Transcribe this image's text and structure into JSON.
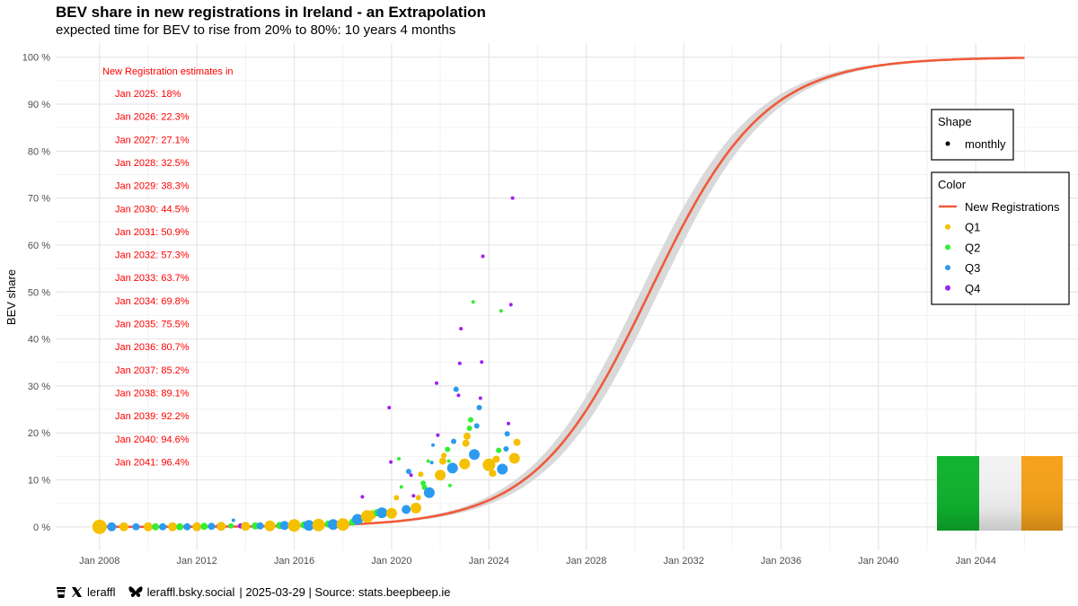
{
  "title": "BEV share in new registrations in Ireland - an Extrapolation",
  "subtitle": "expected time for BEV to rise from 20% to 80%: 10 years 4 months",
  "chart_data": {
    "type": "line+scatter",
    "ylabel": "BEV share",
    "xlabel": "",
    "xlim": [
      2006.2,
      2048.2
    ],
    "ylim": [
      -5,
      103
    ],
    "x_ticks": [
      {
        "value": 2008,
        "label": "Jan 2008"
      },
      {
        "value": 2012,
        "label": "Jan 2012"
      },
      {
        "value": 2016,
        "label": "Jan 2016"
      },
      {
        "value": 2020,
        "label": "Jan 2020"
      },
      {
        "value": 2024,
        "label": "Jan 2024"
      },
      {
        "value": 2028,
        "label": "Jan 2028"
      },
      {
        "value": 2032,
        "label": "Jan 2032"
      },
      {
        "value": 2036,
        "label": "Jan 2036"
      },
      {
        "value": 2040,
        "label": "Jan 2040"
      },
      {
        "value": 2044,
        "label": "Jan 2044"
      }
    ],
    "y_ticks": [
      {
        "value": 0,
        "label": "0 %"
      },
      {
        "value": 10,
        "label": "10 %"
      },
      {
        "value": 20,
        "label": "20 %"
      },
      {
        "value": 30,
        "label": "30 %"
      },
      {
        "value": 40,
        "label": "40 %"
      },
      {
        "value": 50,
        "label": "50 %"
      },
      {
        "value": 60,
        "label": "60 %"
      },
      {
        "value": 70,
        "label": "70 %"
      },
      {
        "value": 80,
        "label": "80 %"
      },
      {
        "value": 90,
        "label": "90 %"
      },
      {
        "value": 100,
        "label": "100 %"
      }
    ],
    "fit": {
      "name": "New Registrations",
      "color": "#f05a3a",
      "band_color": "#d9d9d9",
      "x_start": 2008.0,
      "x_end": 2046.0,
      "logistic_midpoint": 2030.6,
      "logistic_rate": 0.4255,
      "band_halfwidth_at_mid": 4.0
    },
    "annotation_header": "New Registration estimates in",
    "annotations": [
      {
        "label": "Jan 2025: 18%"
      },
      {
        "label": "Jan 2026: 22.3%"
      },
      {
        "label": "Jan 2027: 27.1%"
      },
      {
        "label": "Jan 2028: 32.5%"
      },
      {
        "label": "Jan 2029: 38.3%"
      },
      {
        "label": "Jan 2030: 44.5%"
      },
      {
        "label": "Jan 2031: 50.9%"
      },
      {
        "label": "Jan 2032: 57.3%"
      },
      {
        "label": "Jan 2033: 63.7%"
      },
      {
        "label": "Jan 2034: 69.8%"
      },
      {
        "label": "Jan 2035: 75.5%"
      },
      {
        "label": "Jan 2036: 80.7%"
      },
      {
        "label": "Jan 2037: 85.2%"
      },
      {
        "label": "Jan 2038: 89.1%"
      },
      {
        "label": "Jan 2039: 92.2%"
      },
      {
        "label": "Jan 2040: 94.6%"
      },
      {
        "label": "Jan 2041: 96.4%"
      }
    ],
    "quarter_colors": {
      "Q1": "#f5c000",
      "Q2": "#33ee33",
      "Q3": "#2b9bf0",
      "Q4": "#a020f0"
    },
    "legend": {
      "shape_title": "Shape",
      "shape_label": "monthly",
      "color_title": "Color",
      "color_items": [
        {
          "label": "New Registrations",
          "kind": "line",
          "color": "#f05a3a"
        },
        {
          "label": "Q1",
          "kind": "point",
          "color": "#f5c000"
        },
        {
          "label": "Q2",
          "kind": "point",
          "color": "#33ee33"
        },
        {
          "label": "Q3",
          "kind": "point",
          "color": "#2b9bf0"
        },
        {
          "label": "Q4",
          "kind": "point",
          "color": "#a020f0"
        }
      ]
    },
    "flag_colors": [
      "#0fb32e",
      "#f2f2f2",
      "#f5a21b"
    ],
    "points": [
      {
        "x": 2008.0,
        "y": 0.0,
        "q": "Q1",
        "s": 8
      },
      {
        "x": 2008.5,
        "y": 0.0,
        "q": "Q3",
        "s": 5
      },
      {
        "x": 2009.0,
        "y": 0.0,
        "q": "Q1",
        "s": 5
      },
      {
        "x": 2009.5,
        "y": 0.0,
        "q": "Q3",
        "s": 4
      },
      {
        "x": 2010.0,
        "y": 0.0,
        "q": "Q1",
        "s": 5
      },
      {
        "x": 2010.3,
        "y": 0.0,
        "q": "Q2",
        "s": 4
      },
      {
        "x": 2010.6,
        "y": 0.0,
        "q": "Q3",
        "s": 4
      },
      {
        "x": 2011.0,
        "y": 0.0,
        "q": "Q1",
        "s": 5
      },
      {
        "x": 2011.3,
        "y": 0.0,
        "q": "Q2",
        "s": 4
      },
      {
        "x": 2011.6,
        "y": 0.0,
        "q": "Q3",
        "s": 4
      },
      {
        "x": 2012.0,
        "y": 0.0,
        "q": "Q1",
        "s": 5
      },
      {
        "x": 2012.3,
        "y": 0.1,
        "q": "Q2",
        "s": 4
      },
      {
        "x": 2012.6,
        "y": 0.1,
        "q": "Q3",
        "s": 4
      },
      {
        "x": 2012.9,
        "y": 0.1,
        "q": "Q4",
        "s": 3
      },
      {
        "x": 2013.0,
        "y": 0.1,
        "q": "Q1",
        "s": 5
      },
      {
        "x": 2013.4,
        "y": 0.2,
        "q": "Q2",
        "s": 3
      },
      {
        "x": 2013.5,
        "y": 1.4,
        "q": "Q3",
        "s": 2
      },
      {
        "x": 2013.8,
        "y": 0.2,
        "q": "Q4",
        "s": 3
      },
      {
        "x": 2014.0,
        "y": 0.1,
        "q": "Q1",
        "s": 5
      },
      {
        "x": 2014.4,
        "y": 0.2,
        "q": "Q2",
        "s": 4
      },
      {
        "x": 2014.6,
        "y": 0.2,
        "q": "Q3",
        "s": 4
      },
      {
        "x": 2015.0,
        "y": 0.2,
        "q": "Q1",
        "s": 6
      },
      {
        "x": 2015.4,
        "y": 0.3,
        "q": "Q2",
        "s": 4
      },
      {
        "x": 2015.6,
        "y": 0.3,
        "q": "Q3",
        "s": 5
      },
      {
        "x": 2015.9,
        "y": 0.3,
        "q": "Q4",
        "s": 3
      },
      {
        "x": 2016.0,
        "y": 0.3,
        "q": "Q1",
        "s": 7
      },
      {
        "x": 2016.4,
        "y": 0.4,
        "q": "Q2",
        "s": 4
      },
      {
        "x": 2016.6,
        "y": 0.3,
        "q": "Q3",
        "s": 6
      },
      {
        "x": 2016.9,
        "y": 0.5,
        "q": "Q4",
        "s": 3
      },
      {
        "x": 2017.0,
        "y": 0.4,
        "q": "Q1",
        "s": 7
      },
      {
        "x": 2017.4,
        "y": 0.6,
        "q": "Q2",
        "s": 4
      },
      {
        "x": 2017.6,
        "y": 0.5,
        "q": "Q3",
        "s": 6
      },
      {
        "x": 2017.9,
        "y": 0.8,
        "q": "Q4",
        "s": 3
      },
      {
        "x": 2018.0,
        "y": 0.5,
        "q": "Q1",
        "s": 7
      },
      {
        "x": 2018.4,
        "y": 1.0,
        "q": "Q2",
        "s": 4
      },
      {
        "x": 2018.6,
        "y": 1.6,
        "q": "Q3",
        "s": 6
      },
      {
        "x": 2018.8,
        "y": 6.4,
        "q": "Q4",
        "s": 2
      },
      {
        "x": 2018.9,
        "y": 2.2,
        "q": "Q4",
        "s": 3
      },
      {
        "x": 2019.0,
        "y": 2.2,
        "q": "Q1",
        "s": 7
      },
      {
        "x": 2019.2,
        "y": 2.6,
        "q": "Q1",
        "s": 5
      },
      {
        "x": 2019.4,
        "y": 3.0,
        "q": "Q2",
        "s": 4
      },
      {
        "x": 2019.6,
        "y": 3.0,
        "q": "Q3",
        "s": 6
      },
      {
        "x": 2019.9,
        "y": 25.4,
        "q": "Q4",
        "s": 2
      },
      {
        "x": 2019.97,
        "y": 13.8,
        "q": "Q4",
        "s": 2
      },
      {
        "x": 2020.0,
        "y": 2.9,
        "q": "Q1",
        "s": 6
      },
      {
        "x": 2020.2,
        "y": 6.2,
        "q": "Q1",
        "s": 3
      },
      {
        "x": 2020.3,
        "y": 14.5,
        "q": "Q2",
        "s": 2
      },
      {
        "x": 2020.4,
        "y": 8.5,
        "q": "Q2",
        "s": 2
      },
      {
        "x": 2020.6,
        "y": 3.7,
        "q": "Q3",
        "s": 5
      },
      {
        "x": 2020.7,
        "y": 11.8,
        "q": "Q3",
        "s": 3
      },
      {
        "x": 2020.8,
        "y": 11.0,
        "q": "Q4",
        "s": 2
      },
      {
        "x": 2020.9,
        "y": 6.6,
        "q": "Q4",
        "s": 2
      },
      {
        "x": 2021.0,
        "y": 4.0,
        "q": "Q1",
        "s": 6
      },
      {
        "x": 2021.1,
        "y": 6.2,
        "q": "Q1",
        "s": 3
      },
      {
        "x": 2021.2,
        "y": 11.2,
        "q": "Q1",
        "s": 3
      },
      {
        "x": 2021.3,
        "y": 9.3,
        "q": "Q2",
        "s": 3
      },
      {
        "x": 2021.35,
        "y": 8.4,
        "q": "Q2",
        "s": 3
      },
      {
        "x": 2021.5,
        "y": 14.0,
        "q": "Q2",
        "s": 2
      },
      {
        "x": 2021.55,
        "y": 7.3,
        "q": "Q3",
        "s": 6
      },
      {
        "x": 2021.65,
        "y": 13.7,
        "q": "Q3",
        "s": 2
      },
      {
        "x": 2021.7,
        "y": 17.4,
        "q": "Q3",
        "s": 2
      },
      {
        "x": 2021.85,
        "y": 30.6,
        "q": "Q4",
        "s": 2
      },
      {
        "x": 2021.9,
        "y": 19.5,
        "q": "Q4",
        "s": 2
      },
      {
        "x": 2022.0,
        "y": 11.0,
        "q": "Q1",
        "s": 6
      },
      {
        "x": 2022.1,
        "y": 14.0,
        "q": "Q1",
        "s": 4
      },
      {
        "x": 2022.15,
        "y": 15.2,
        "q": "Q1",
        "s": 3
      },
      {
        "x": 2022.3,
        "y": 16.5,
        "q": "Q2",
        "s": 3
      },
      {
        "x": 2022.35,
        "y": 14.0,
        "q": "Q2",
        "s": 2
      },
      {
        "x": 2022.4,
        "y": 8.8,
        "q": "Q2",
        "s": 2
      },
      {
        "x": 2022.5,
        "y": 12.5,
        "q": "Q3",
        "s": 6
      },
      {
        "x": 2022.55,
        "y": 18.2,
        "q": "Q3",
        "s": 3
      },
      {
        "x": 2022.65,
        "y": 29.3,
        "q": "Q3",
        "s": 3
      },
      {
        "x": 2022.75,
        "y": 28.0,
        "q": "Q4",
        "s": 2
      },
      {
        "x": 2022.8,
        "y": 34.8,
        "q": "Q4",
        "s": 2
      },
      {
        "x": 2022.85,
        "y": 42.2,
        "q": "Q4",
        "s": 2
      },
      {
        "x": 2023.0,
        "y": 13.4,
        "q": "Q1",
        "s": 6
      },
      {
        "x": 2023.05,
        "y": 17.8,
        "q": "Q1",
        "s": 4
      },
      {
        "x": 2023.1,
        "y": 19.3,
        "q": "Q1",
        "s": 4
      },
      {
        "x": 2023.2,
        "y": 21.0,
        "q": "Q2",
        "s": 3
      },
      {
        "x": 2023.25,
        "y": 22.8,
        "q": "Q2",
        "s": 3
      },
      {
        "x": 2023.35,
        "y": 47.9,
        "q": "Q2",
        "s": 2
      },
      {
        "x": 2023.4,
        "y": 15.4,
        "q": "Q3",
        "s": 6
      },
      {
        "x": 2023.5,
        "y": 21.5,
        "q": "Q3",
        "s": 3
      },
      {
        "x": 2023.6,
        "y": 25.4,
        "q": "Q3",
        "s": 3
      },
      {
        "x": 2023.65,
        "y": 27.4,
        "q": "Q4",
        "s": 2
      },
      {
        "x": 2023.7,
        "y": 35.1,
        "q": "Q4",
        "s": 2
      },
      {
        "x": 2023.75,
        "y": 57.6,
        "q": "Q4",
        "s": 2
      },
      {
        "x": 2024.0,
        "y": 13.2,
        "q": "Q1",
        "s": 7
      },
      {
        "x": 2024.15,
        "y": 11.4,
        "q": "Q1",
        "s": 4
      },
      {
        "x": 2024.3,
        "y": 14.4,
        "q": "Q1",
        "s": 4
      },
      {
        "x": 2024.4,
        "y": 16.3,
        "q": "Q2",
        "s": 3
      },
      {
        "x": 2024.5,
        "y": 46.0,
        "q": "Q2",
        "s": 2
      },
      {
        "x": 2024.55,
        "y": 12.3,
        "q": "Q3",
        "s": 6
      },
      {
        "x": 2024.7,
        "y": 16.6,
        "q": "Q3",
        "s": 3
      },
      {
        "x": 2024.75,
        "y": 19.8,
        "q": "Q3",
        "s": 3
      },
      {
        "x": 2024.8,
        "y": 22.0,
        "q": "Q4",
        "s": 2
      },
      {
        "x": 2024.9,
        "y": 47.3,
        "q": "Q4",
        "s": 2
      },
      {
        "x": 2024.97,
        "y": 70.0,
        "q": "Q4",
        "s": 2
      },
      {
        "x": 2025.05,
        "y": 14.6,
        "q": "Q1",
        "s": 6
      },
      {
        "x": 2025.15,
        "y": 18.0,
        "q": "Q1",
        "s": 4
      }
    ]
  },
  "footer": {
    "x_handle": "leraffl",
    "bsky_handle": "leraffl.bsky.social",
    "rest": "| 2025-03-29 | Source: stats.beepbeep.ie"
  }
}
